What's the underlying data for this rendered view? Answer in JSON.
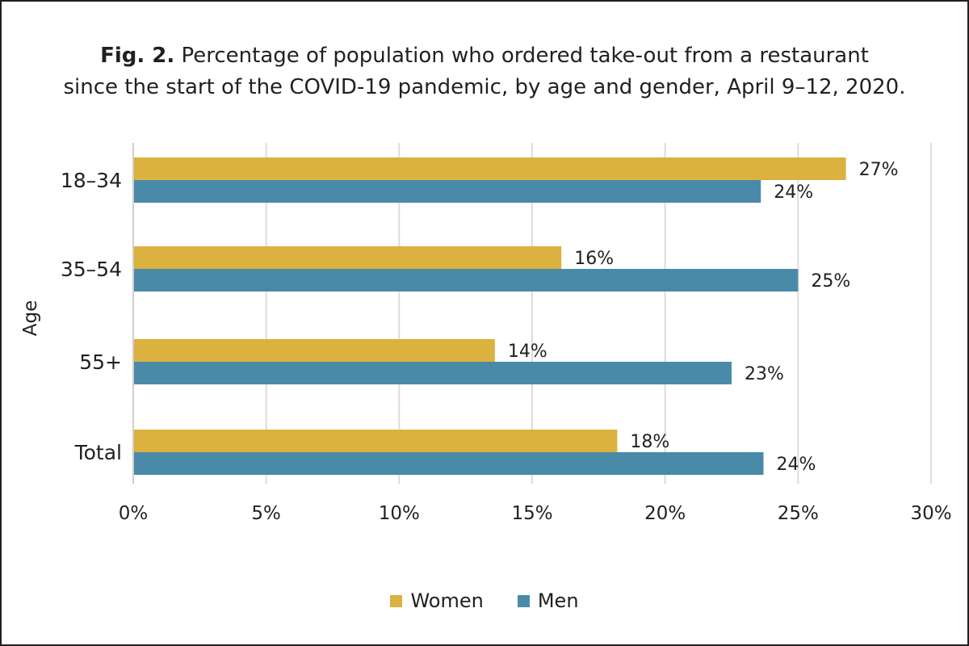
{
  "title": {
    "prefix": "Fig. 2.",
    "line1": "Percentage of population who ordered take-out from a restaurant",
    "line2": "since the start of the COVID-19 pandemic, by age and gender, April 9–12, 2020."
  },
  "colors": {
    "women": "#dbb13f",
    "men": "#4a8aa9",
    "grid": "#dcdcdc",
    "text": "#231f20"
  },
  "chart_data": {
    "type": "bar",
    "orientation": "horizontal",
    "title": "Fig. 2. Percentage of population who ordered take-out from a restaurant since the start of the COVID-19 pandemic, by age and gender, April 9–12, 2020.",
    "xlabel": "",
    "ylabel": "Age",
    "categories": [
      "18–34",
      "35–54",
      "55+",
      "Total"
    ],
    "series": [
      {
        "name": "Women",
        "values": [
          26.8,
          16.1,
          13.6,
          18.2
        ],
        "labels": [
          "27%",
          "16%",
          "14%",
          "18%"
        ]
      },
      {
        "name": "Men",
        "values": [
          23.6,
          25.0,
          22.5,
          23.7
        ],
        "labels": [
          "24%",
          "25%",
          "23%",
          "24%"
        ]
      }
    ],
    "xlim": [
      0,
      30
    ],
    "xticks": [
      0,
      5,
      10,
      15,
      20,
      25,
      30
    ],
    "xtick_labels": [
      "0%",
      "5%",
      "10%",
      "15%",
      "20%",
      "25%",
      "30%"
    ],
    "grid": "vertical",
    "legend": "bottom-center"
  }
}
